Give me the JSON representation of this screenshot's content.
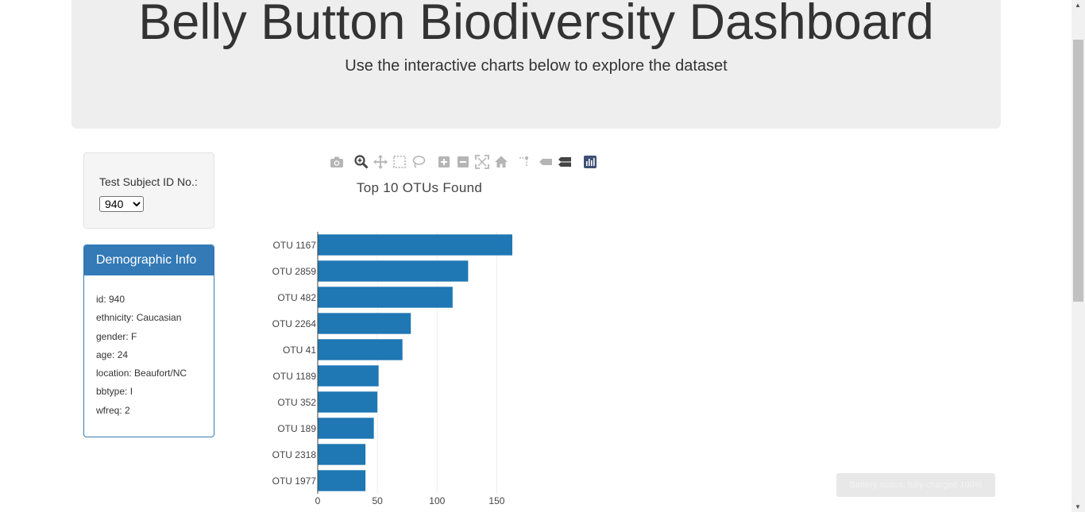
{
  "header": {
    "title": "Belly Button Biodiversity Dashboard",
    "subtitle": "Use the interactive charts below to explore the dataset"
  },
  "selector": {
    "label": "Test Subject ID No.:",
    "selected": "940"
  },
  "demographics": {
    "heading": "Demographic Info",
    "rows": [
      "id: 940",
      "ethnicity: Caucasian",
      "gender: F",
      "age: 24",
      "location: Beaufort/NC",
      "bbtype: I",
      "wfreq: 2"
    ]
  },
  "modebar": {
    "icons": [
      "camera-icon",
      "zoom-icon",
      "pan-icon",
      "box-select-icon",
      "lasso-icon",
      "zoom-in-icon",
      "zoom-out-icon",
      "autoscale-icon",
      "reset-axes-icon",
      "spike-lines-icon",
      "hover-closest-icon",
      "hover-compare-icon",
      "plotly-logo-icon"
    ]
  },
  "chart_data": {
    "type": "bar",
    "orientation": "horizontal",
    "title": "Top 10 OTUs Found",
    "xlabel": "",
    "ylabel": "",
    "categories": [
      "OTU 1167",
      "OTU 2859",
      "OTU 482",
      "OTU 2264",
      "OTU 41",
      "OTU 1189",
      "OTU 352",
      "OTU 189",
      "OTU 2318",
      "OTU 1977"
    ],
    "values": [
      163,
      126,
      113,
      78,
      71,
      51,
      50,
      47,
      40,
      40
    ],
    "xlim": [
      0,
      165
    ],
    "xticks": [
      0,
      50,
      100,
      150
    ],
    "grid": true,
    "bar_color": "#1f77b4"
  },
  "toast": {
    "text": "Battery status: fully charged 100%"
  }
}
